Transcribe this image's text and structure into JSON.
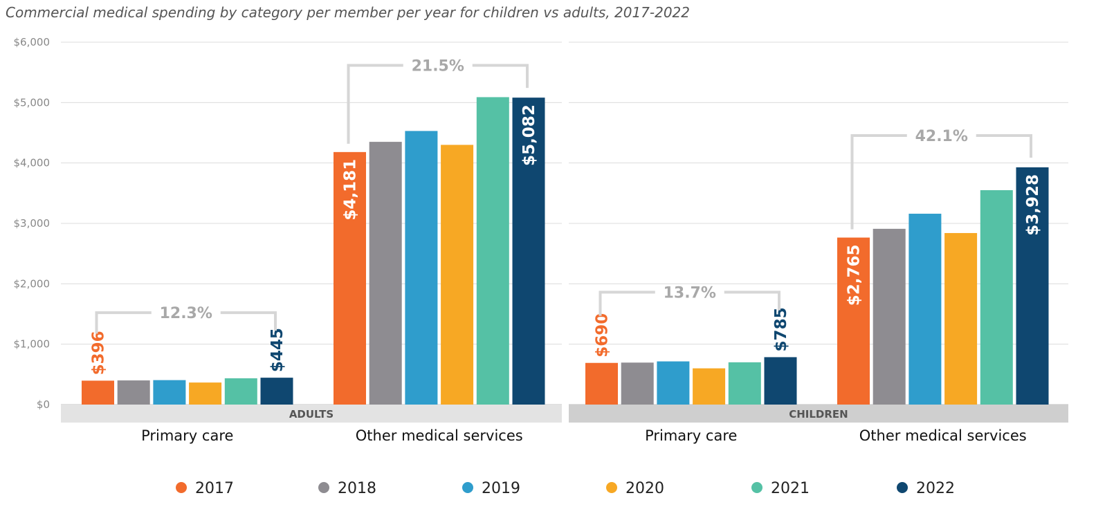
{
  "title": "Commercial medical spending by category per member per year for children vs adults, 2017-2022",
  "colors": {
    "2017": "#f26b2c",
    "2018": "#8e8c91",
    "2019": "#2f9dcc",
    "2020": "#f7a824",
    "2021": "#55c1a5",
    "2022": "#0f4770"
  },
  "legend": [
    "2017",
    "2018",
    "2019",
    "2020",
    "2021",
    "2022"
  ],
  "chart_data": {
    "type": "bar",
    "title": "Commercial medical spending by category per member per year for children vs adults, 2017-2022",
    "ylim": [
      0,
      6000
    ],
    "yticks": [
      "$0",
      "$1,000",
      "$2,000",
      "$3,000",
      "$4,000",
      "$5,000",
      "$6,000"
    ],
    "grid": true,
    "legend_placement": "bottom",
    "series_names": [
      "2017",
      "2018",
      "2019",
      "2020",
      "2021",
      "2022"
    ],
    "panels": [
      {
        "name": "ADULTS",
        "groups": [
          {
            "category": "Primary care",
            "values": [
              396,
              400,
              405,
              365,
              435,
              445
            ],
            "first_label": "$396",
            "last_label": "$445",
            "change": "12.3%"
          },
          {
            "category": "Other medical services",
            "values": [
              4181,
              4350,
              4530,
              4300,
              5090,
              5082
            ],
            "first_label": "$4,181",
            "last_label": "$5,082",
            "change": "21.5%"
          }
        ]
      },
      {
        "name": "CHILDREN",
        "groups": [
          {
            "category": "Primary care",
            "values": [
              690,
              695,
              715,
              600,
              700,
              785
            ],
            "first_label": "$690",
            "last_label": "$785",
            "change": "13.7%"
          },
          {
            "category": "Other medical services",
            "values": [
              2765,
              2910,
              3160,
              2840,
              3550,
              3928
            ],
            "first_label": "$2,765",
            "last_label": "$3,928",
            "change": "42.1%"
          }
        ]
      }
    ]
  }
}
